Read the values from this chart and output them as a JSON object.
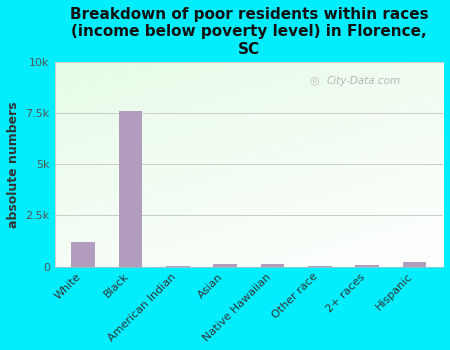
{
  "title": "Breakdown of poor residents within races\n(income below poverty level) in Florence,\nSC",
  "ylabel": "absolute numbers",
  "categories": [
    "White",
    "Black",
    "American Indian",
    "Asian",
    "Native Hawaiian",
    "Other race",
    "2+ races",
    "Hispanic"
  ],
  "values": [
    1200,
    7600,
    30,
    100,
    100,
    30,
    80,
    200
  ],
  "bar_color": "#b39dbe",
  "ylim": [
    0,
    10000
  ],
  "yticks": [
    0,
    2500,
    5000,
    7500,
    10000
  ],
  "ytick_labels": [
    "0",
    "2.5k",
    "5k",
    "7.5k",
    "10k"
  ],
  "bg_outer": "#00eeff",
  "watermark": "City-Data.com",
  "title_fontsize": 11,
  "ylabel_fontsize": 9,
  "tick_fontsize": 8
}
